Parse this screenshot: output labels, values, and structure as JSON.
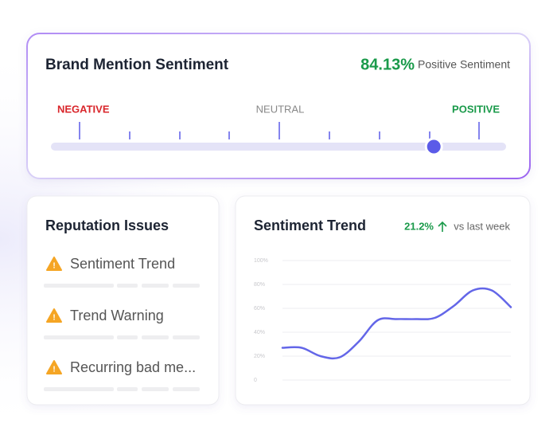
{
  "sentiment": {
    "title": "Brand Mention Sentiment",
    "score": {
      "value": 84.13,
      "label": "84.13%"
    },
    "score_caption": "Positive Sentiment",
    "scale_labels": [
      "NEGATIVE",
      "NEUTRAL",
      "POSITIVE"
    ]
  },
  "issues": {
    "title": "Reputation Issues",
    "items": [
      "Sentiment Trend",
      "Trend Warning",
      "Recurring bad me..."
    ]
  },
  "trend": {
    "title": "Sentiment Trend",
    "change": "21.2%",
    "comparison": "vs last week",
    "chart": {
      "type": "line",
      "color": "#6366e8",
      "values": [
        27,
        27,
        20,
        19,
        32,
        50,
        51,
        51,
        52,
        62,
        75,
        75,
        61
      ],
      "ylim": [
        0,
        100
      ],
      "yticks": [
        0,
        {
          "value": 20,
          "label": "20%"
        },
        {
          "value": 40,
          "label": "40%"
        },
        {
          "value": 60,
          "label": "60%"
        },
        {
          "value": 80,
          "label": "80%"
        },
        {
          "value": 100,
          "label": "100%"
        }
      ],
      "grid": true
    }
  }
}
